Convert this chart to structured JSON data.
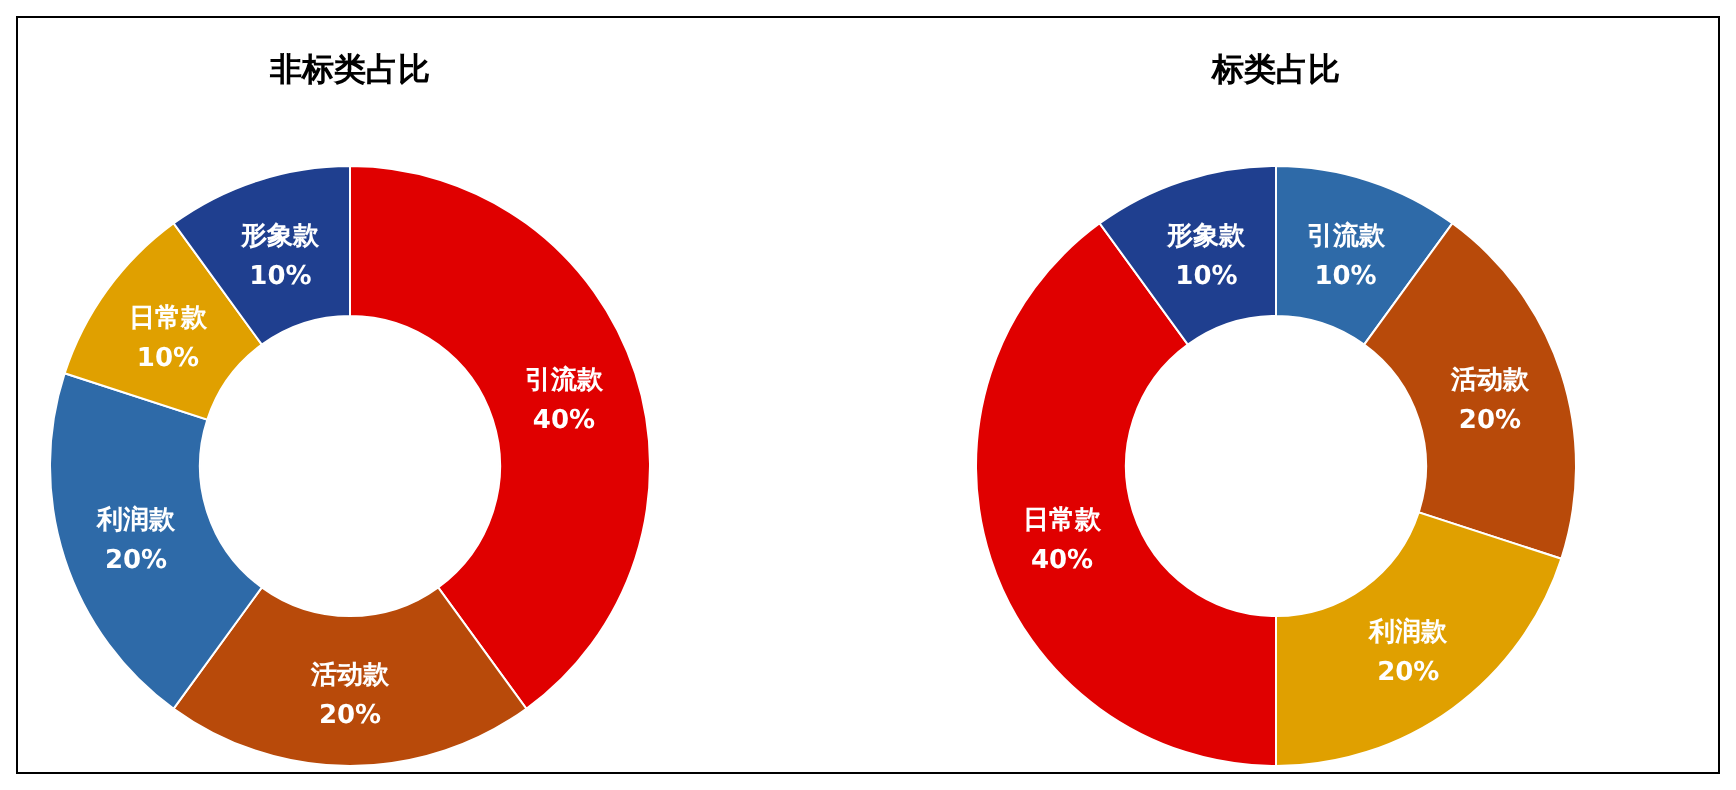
{
  "chart_data": [
    {
      "type": "donut",
      "title": "非标类占比",
      "categories": [
        "引流款",
        "活动款",
        "利润款",
        "日常款",
        "形象款"
      ],
      "values": [
        40,
        20,
        20,
        10,
        10
      ],
      "value_labels": [
        "40%",
        "20%",
        "20%",
        "10%",
        "10%"
      ],
      "colors": [
        "#e00000",
        "#b84a0a",
        "#2e6aa8",
        "#e0a000",
        "#1f3f8f"
      ]
    },
    {
      "type": "donut",
      "title": "标类占比",
      "categories": [
        "引流款",
        "活动款",
        "利润款",
        "日常款",
        "形象款"
      ],
      "values": [
        10,
        20,
        20,
        40,
        10
      ],
      "value_labels": [
        "10%",
        "20%",
        "20%",
        "40%",
        "10%"
      ],
      "colors": [
        "#2e6aa8",
        "#b84a0a",
        "#e0a000",
        "#e00000",
        "#1f3f8f"
      ]
    }
  ]
}
